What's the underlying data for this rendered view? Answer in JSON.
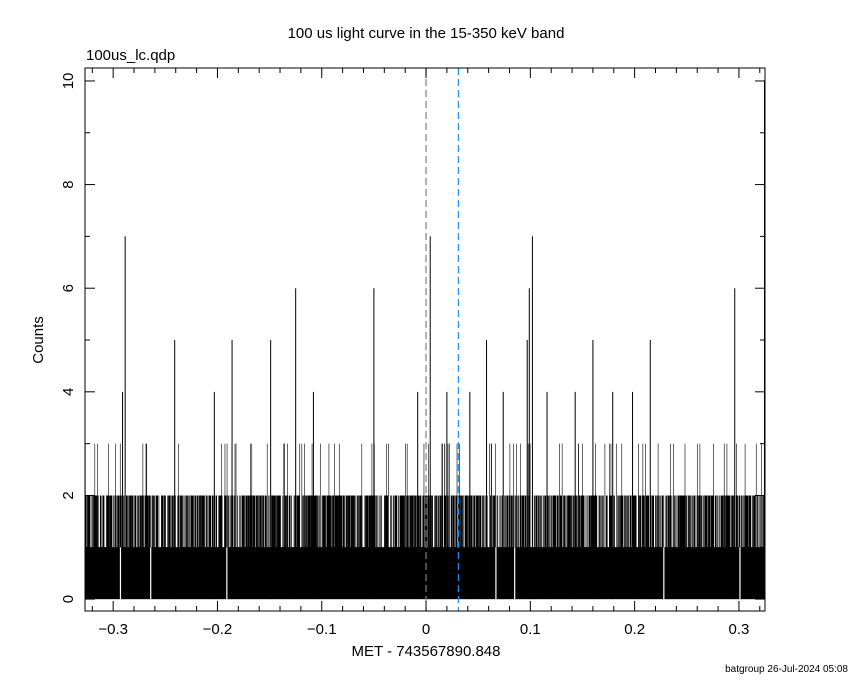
{
  "chart_data": {
    "type": "bar",
    "title": "100 us light curve in the 15-350 keV band",
    "file_label": "100us_lc.qdp",
    "xlabel": "MET - 743567890.848",
    "ylabel": "Counts",
    "footer": "batgroup 26-Jul-2024 05:08",
    "xlim": [
      -0.327,
      0.325
    ],
    "ylim": [
      -0.23,
      10.25
    ],
    "bin_width": 0.0001,
    "x_ticks": [
      -0.3,
      -0.2,
      -0.1,
      0,
      0.1,
      0.2,
      0.3
    ],
    "x_tick_labels": [
      "−0.3",
      "−0.2",
      "−0.1",
      "0",
      "0.1",
      "0.2",
      "0.3"
    ],
    "y_ticks": [
      0,
      2,
      4,
      6,
      8,
      10
    ],
    "y_tick_labels": [
      "0",
      "2",
      "4",
      "6",
      "8",
      "10"
    ],
    "grid": false,
    "background_counts_range": [
      0,
      3
    ],
    "peaks": [
      {
        "x": -0.291,
        "y": 4
      },
      {
        "x": -0.2885,
        "y": 7
      },
      {
        "x": -0.241,
        "y": 5
      },
      {
        "x": -0.203,
        "y": 4
      },
      {
        "x": -0.186,
        "y": 5
      },
      {
        "x": -0.149,
        "y": 5
      },
      {
        "x": -0.125,
        "y": 6
      },
      {
        "x": -0.108,
        "y": 4
      },
      {
        "x": -0.05,
        "y": 6
      },
      {
        "x": -0.008,
        "y": 4
      },
      {
        "x": 0.004,
        "y": 7
      },
      {
        "x": 0.02,
        "y": 4
      },
      {
        "x": 0.042,
        "y": 4
      },
      {
        "x": 0.058,
        "y": 5
      },
      {
        "x": 0.074,
        "y": 4
      },
      {
        "x": 0.097,
        "y": 5
      },
      {
        "x": 0.099,
        "y": 6
      },
      {
        "x": 0.102,
        "y": 7
      },
      {
        "x": 0.116,
        "y": 4
      },
      {
        "x": 0.143,
        "y": 4
      },
      {
        "x": 0.16,
        "y": 5
      },
      {
        "x": 0.179,
        "y": 4
      },
      {
        "x": 0.198,
        "y": 4
      },
      {
        "x": 0.215,
        "y": 5
      },
      {
        "x": 0.296,
        "y": 6
      },
      {
        "x": 0.3245,
        "y": 10
      }
    ],
    "reference_lines": [
      {
        "x": 0,
        "color": "#808080",
        "style": "dashed"
      },
      {
        "x": 0.031,
        "color": "#1e90ff",
        "style": "dashed"
      }
    ],
    "line_color": "#000000"
  }
}
